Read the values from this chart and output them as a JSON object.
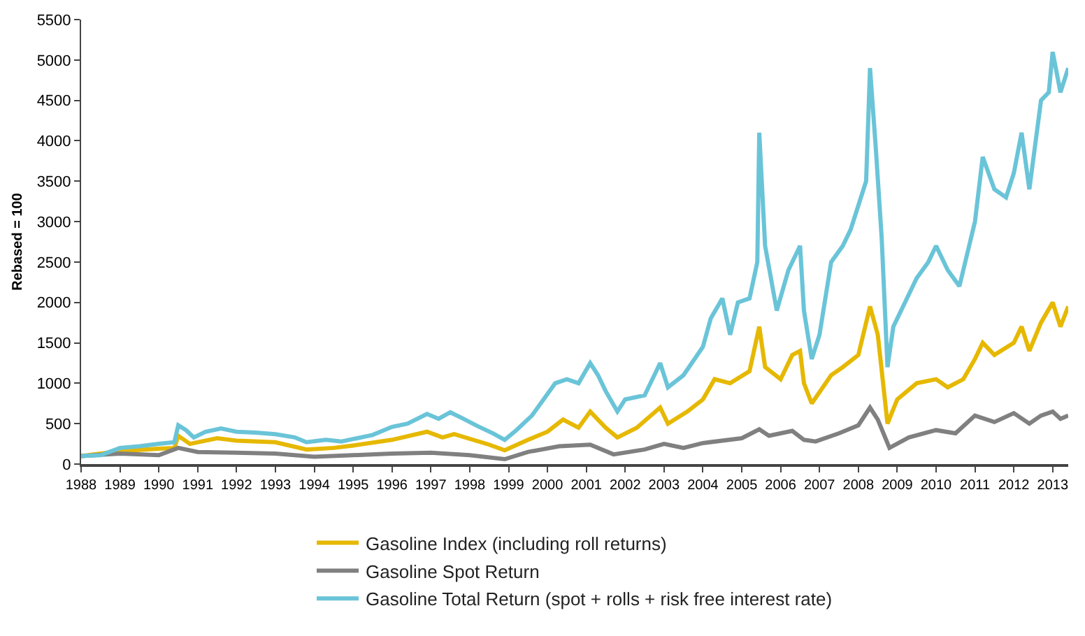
{
  "chart_data": {
    "type": "line",
    "ylabel": "Rebased = 100",
    "xlim": [
      1988,
      2013.4
    ],
    "xticks": [
      1988,
      1989,
      1990,
      1991,
      1992,
      1993,
      1994,
      1995,
      1996,
      1997,
      1998,
      1999,
      2000,
      2001,
      2002,
      2003,
      2004,
      2005,
      2006,
      2007,
      2008,
      2009,
      2010,
      2011,
      2012,
      2013
    ],
    "ylim": [
      0,
      5500
    ],
    "yticks": [
      0,
      500,
      1000,
      1500,
      2000,
      2500,
      3000,
      3500,
      4000,
      4500,
      5000,
      5500
    ],
    "grid": false,
    "legend": "bottom",
    "marker": "none",
    "line_style": "solid",
    "series": [
      {
        "name": "Gasoline Index (including roll returns)",
        "color": "#e6b800",
        "x": [
          1988,
          1989,
          1990,
          1990.4,
          1990.5,
          1990.8,
          1991.5,
          1992,
          1993,
          1993.8,
          1994.5,
          1995,
          1996,
          1996.9,
          1997.3,
          1997.6,
          1998.5,
          1998.9,
          1999.5,
          2000,
          2000.4,
          2000.8,
          2001.1,
          2001.5,
          2001.8,
          2002.3,
          2002.9,
          2003.1,
          2003.6,
          2004,
          2004.3,
          2004.7,
          2005.2,
          2005.45,
          2005.6,
          2006,
          2006.3,
          2006.5,
          2006.6,
          2006.8,
          2007.3,
          2007.6,
          2008,
          2008.3,
          2008.5,
          2008.75,
          2009,
          2009.5,
          2010,
          2010.3,
          2010.7,
          2011,
          2011.2,
          2011.5,
          2012,
          2012.2,
          2012.4,
          2012.7,
          2013,
          2013.2,
          2013.4
        ],
        "values": [
          100,
          160,
          190,
          200,
          350,
          250,
          320,
          290,
          270,
          180,
          200,
          230,
          300,
          400,
          330,
          370,
          240,
          170,
          300,
          400,
          550,
          450,
          650,
          450,
          330,
          450,
          700,
          500,
          650,
          800,
          1050,
          1000,
          1150,
          1700,
          1200,
          1050,
          1350,
          1400,
          1000,
          750,
          1100,
          1200,
          1350,
          1950,
          1600,
          500,
          800,
          1000,
          1050,
          950,
          1050,
          1300,
          1500,
          1350,
          1500,
          1700,
          1400,
          1750,
          2000,
          1700,
          1950
        ]
      },
      {
        "name": "Gasoline Spot Return",
        "color": "#808080",
        "x": [
          1988,
          1989,
          1990,
          1990.5,
          1991,
          1992,
          1993,
          1994,
          1995,
          1996,
          1997,
          1998,
          1998.9,
          1999.5,
          2000.3,
          2001.1,
          2001.7,
          2002.5,
          2003,
          2003.5,
          2004,
          2005,
          2005.45,
          2005.7,
          2006.3,
          2006.6,
          2006.9,
          2007.5,
          2008,
          2008.3,
          2008.5,
          2008.8,
          2009.3,
          2010,
          2010.5,
          2011,
          2011.5,
          2012,
          2012.4,
          2012.7,
          2013,
          2013.2,
          2013.4
        ],
        "values": [
          100,
          130,
          110,
          200,
          150,
          140,
          130,
          90,
          110,
          130,
          140,
          110,
          60,
          150,
          220,
          240,
          120,
          180,
          250,
          200,
          260,
          320,
          430,
          350,
          410,
          300,
          280,
          380,
          480,
          700,
          550,
          200,
          330,
          420,
          380,
          600,
          520,
          630,
          500,
          600,
          650,
          560,
          600
        ]
      },
      {
        "name": "Gasoline Total Return (spot + rolls + risk free interest rate)",
        "color": "#6ac4d8",
        "x": [
          1988,
          1988.5,
          1989,
          1989.5,
          1990,
          1990.4,
          1990.5,
          1990.7,
          1990.9,
          1991.2,
          1991.6,
          1992,
          1992.5,
          1993,
          1993.5,
          1993.8,
          1994.3,
          1994.7,
          1995,
          1995.5,
          1996,
          1996.4,
          1996.9,
          1997.2,
          1997.5,
          1997.8,
          1998.2,
          1998.6,
          1998.9,
          1999.2,
          1999.6,
          1999.9,
          2000.2,
          2000.5,
          2000.8,
          2001.1,
          2001.3,
          2001.5,
          2001.8,
          2002,
          2002.5,
          2002.9,
          2003.1,
          2003.5,
          2004,
          2004.2,
          2004.5,
          2004.7,
          2004.9,
          2005.2,
          2005.4,
          2005.45,
          2005.6,
          2005.9,
          2006.2,
          2006.5,
          2006.6,
          2006.8,
          2007,
          2007.3,
          2007.6,
          2007.8,
          2008,
          2008.2,
          2008.3,
          2008.45,
          2008.6,
          2008.75,
          2008.9,
          2009.2,
          2009.5,
          2009.8,
          2010,
          2010.3,
          2010.6,
          2010.8,
          2011,
          2011.2,
          2011.5,
          2011.8,
          2012,
          2012.2,
          2012.4,
          2012.7,
          2012.9,
          2013,
          2013.2,
          2013.4
        ],
        "values": [
          100,
          110,
          200,
          220,
          250,
          270,
          480,
          420,
          330,
          400,
          440,
          400,
          390,
          370,
          330,
          270,
          300,
          280,
          310,
          360,
          460,
          500,
          620,
          560,
          640,
          570,
          470,
          380,
          300,
          420,
          600,
          800,
          1000,
          1050,
          1000,
          1250,
          1100,
          900,
          650,
          800,
          850,
          1250,
          950,
          1100,
          1450,
          1800,
          2050,
          1600,
          2000,
          2050,
          2500,
          4100,
          2700,
          1900,
          2400,
          2700,
          1900,
          1300,
          1600,
          2500,
          2700,
          2900,
          3200,
          3500,
          4900,
          3900,
          2800,
          1200,
          1700,
          2000,
          2300,
          2500,
          2700,
          2400,
          2200,
          2600,
          3000,
          3800,
          3400,
          3300,
          3600,
          4100,
          3400,
          4500,
          4600,
          5100,
          4600,
          4900
        ]
      }
    ]
  }
}
